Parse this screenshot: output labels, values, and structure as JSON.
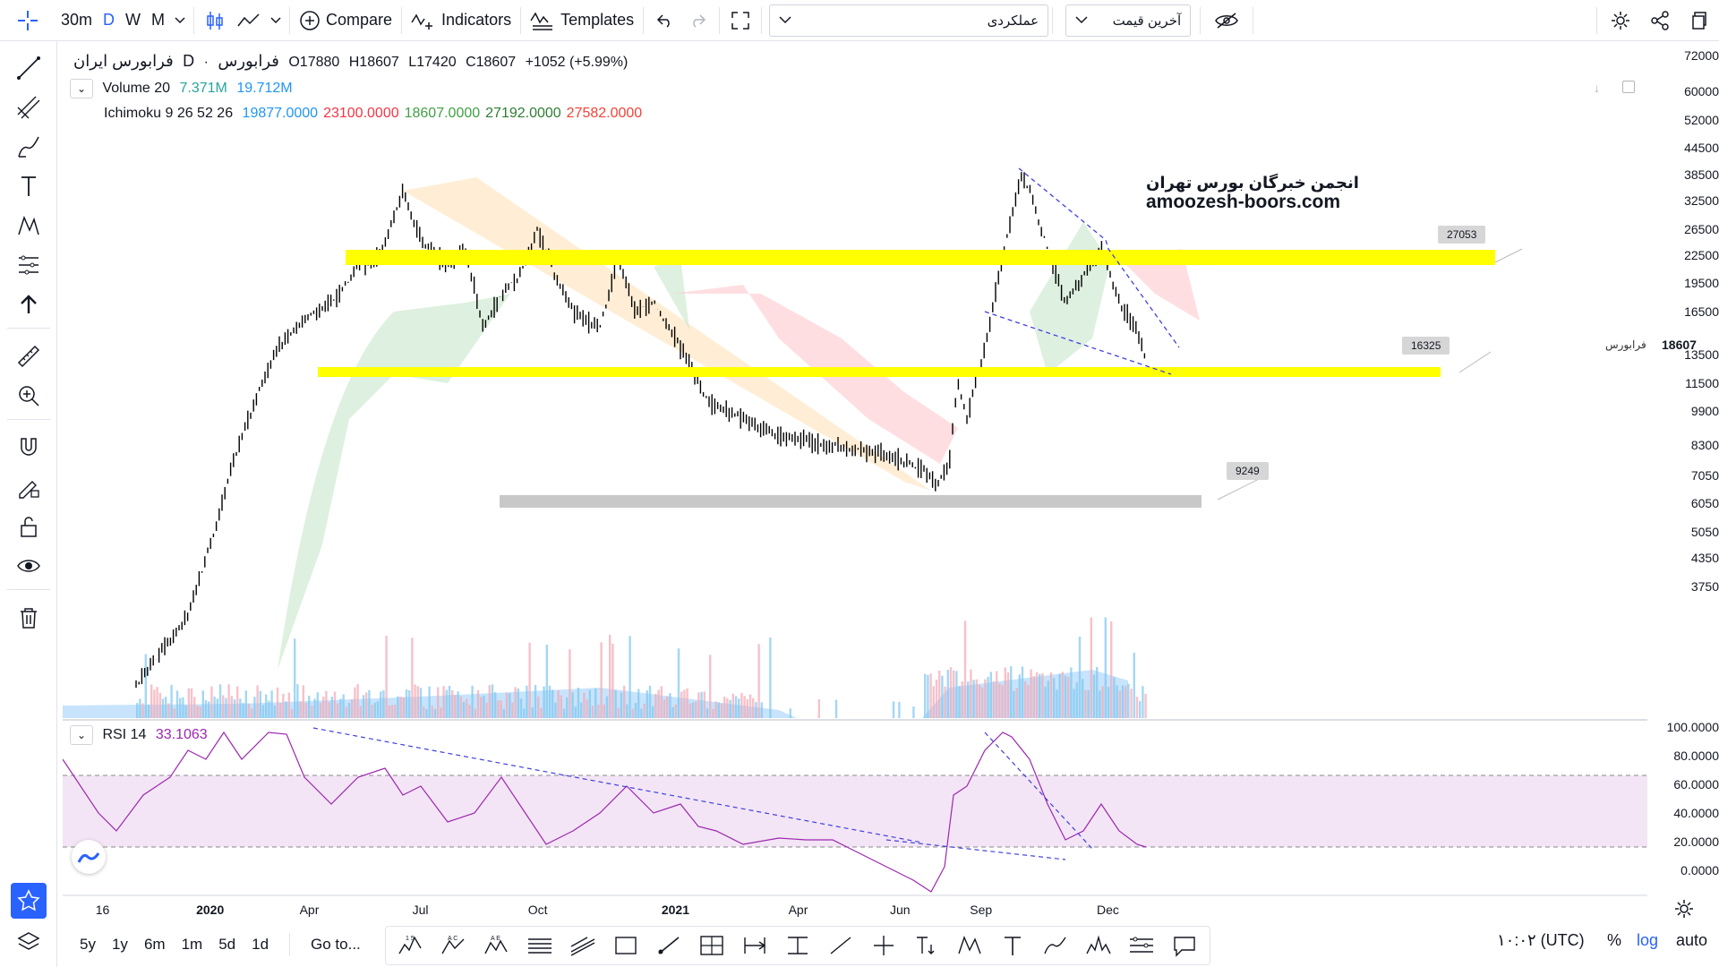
{
  "toolbar": {
    "interval": "30m",
    "periods": [
      "D",
      "W",
      "M"
    ],
    "compare_label": "Compare",
    "indicators_label": "Indicators",
    "templates_label": "Templates",
    "dropdown1_value": "عملکردی",
    "dropdown2_value": "آخرین قیمت"
  },
  "symbol": {
    "title": "فرابورس ایران",
    "sep": "·",
    "interval": "D",
    "exchange": "فرابورس",
    "open": "O17880",
    "high": "H18607",
    "low": "L17420",
    "close": "C18607",
    "change": "+1052 (+5.99%)"
  },
  "volume": {
    "label": "Volume 20",
    "value1": "7.371M",
    "value2": "19.712M"
  },
  "ichimoku": {
    "label": "Ichimoku 9 26 52 26",
    "values": [
      {
        "text": "19877.0000",
        "color": "#2196f3"
      },
      {
        "text": "23100.0000",
        "color": "#f23645"
      },
      {
        "text": "18607.0000",
        "color": "#43a047"
      },
      {
        "text": "27192.0000",
        "color": "#2e7d32"
      },
      {
        "text": "27582.0000",
        "color": "#f44336"
      }
    ]
  },
  "watermark": {
    "line1": "انجمن خبرگان بورس تهران",
    "line2": "amoozesh-boors.com"
  },
  "levels": [
    {
      "label": "27053",
      "color": "#ffff00"
    },
    {
      "label": "16325",
      "color": "#ffff00"
    },
    {
      "label": "9249",
      "color": "#c8c8c8"
    }
  ],
  "price_axis": [
    "72000",
    "60000",
    "52000",
    "44500",
    "38500",
    "32500",
    "26500",
    "22500",
    "19500",
    "16500",
    "13500",
    "11500",
    "9900",
    "8300",
    "7050",
    "6050",
    "5050",
    "4350",
    "3750"
  ],
  "last_price": {
    "label": "18607",
    "symbol_tag": "فرابورس"
  },
  "rsi": {
    "label": "RSI 14",
    "value": "33.1063",
    "axis": [
      "100.0000",
      "80.0000",
      "60.0000",
      "40.0000",
      "20.0000",
      "0.0000"
    ]
  },
  "time_axis": [
    "16",
    "2020",
    "Apr",
    "Jul",
    "Oct",
    "2021",
    "Apr",
    "Jun",
    "Sep",
    "Dec"
  ],
  "ranges": [
    "5y",
    "1y",
    "6m",
    "1m",
    "5d",
    "1d"
  ],
  "goto_label": "Go to...",
  "clock": "۱۰:۰۲ (UTC)",
  "scale_opts": [
    "%",
    "log",
    "auto"
  ],
  "colors": {
    "accent": "#2962ff",
    "up": "#000000",
    "band": "#f3e5f5",
    "rsi_line": "#9c27b0",
    "trend": "#3f3fdf"
  }
}
